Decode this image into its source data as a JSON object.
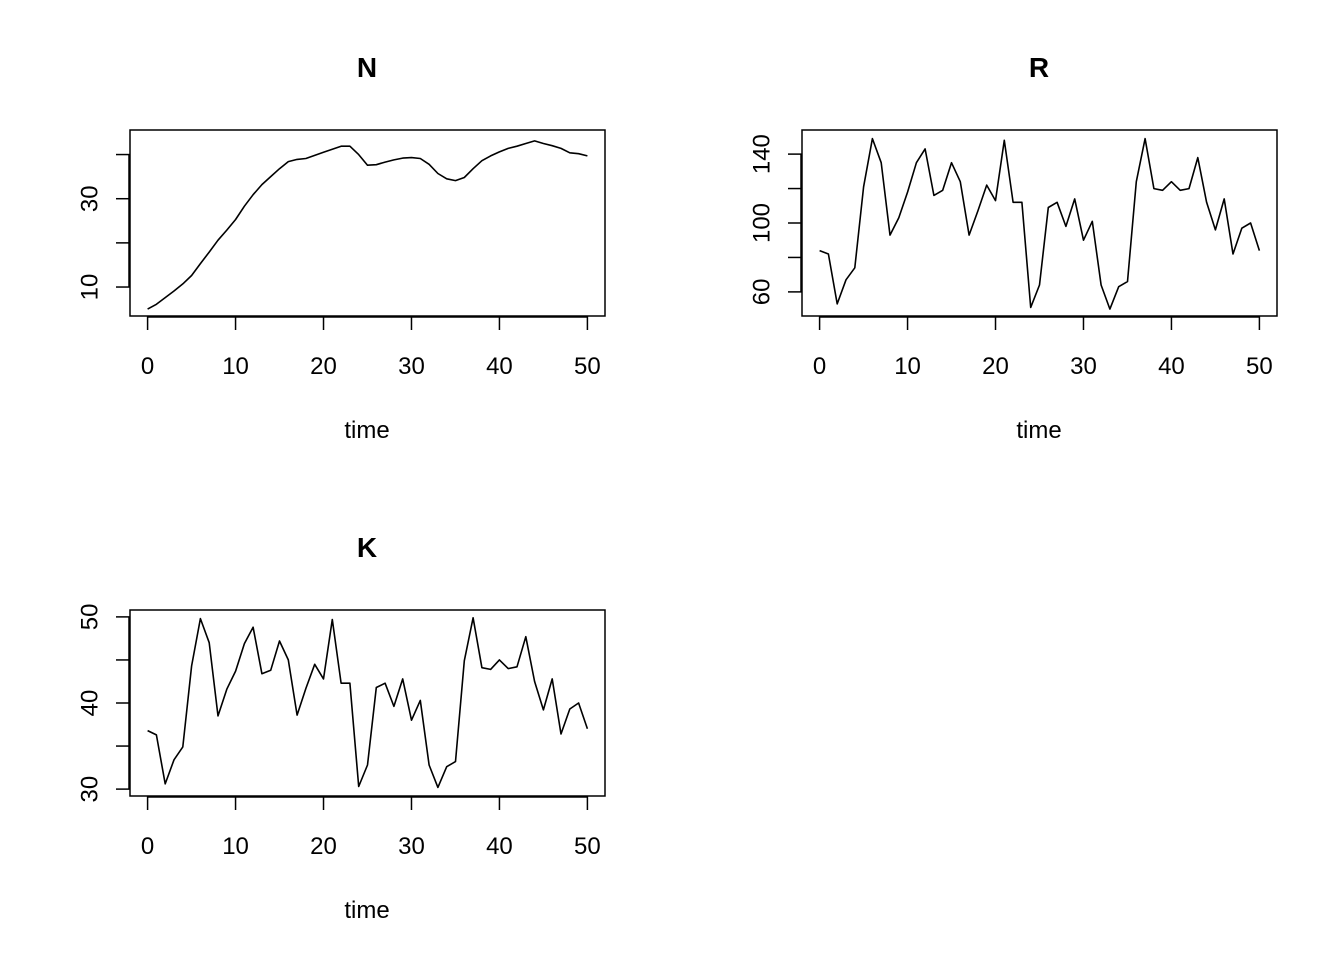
{
  "chart_data": [
    {
      "type": "line",
      "title": "N",
      "xlabel": "time",
      "ylabel": "",
      "xlim": [
        0,
        50
      ],
      "ylim": [
        5,
        44
      ],
      "xticks": [
        "0",
        "10",
        "20",
        "30",
        "40",
        "50"
      ],
      "yticks": [
        "10",
        "20",
        "30",
        "40"
      ],
      "ytick_labels_shown": [
        "10",
        "30"
      ],
      "grid": false,
      "series": [
        {
          "color": "#000000",
          "x": [
            0,
            1,
            2,
            3,
            4,
            5,
            6,
            7,
            8,
            9,
            10,
            11,
            12,
            13,
            14,
            15,
            16,
            17,
            18,
            19,
            20,
            21,
            22,
            23,
            24,
            25,
            26,
            27,
            28,
            29,
            30,
            31,
            32,
            33,
            34,
            35,
            36,
            37,
            38,
            39,
            40,
            41,
            42,
            43,
            44,
            45,
            46,
            47,
            48,
            49,
            50
          ],
          "y": [
            5.0,
            6.1,
            7.6,
            9.1,
            10.7,
            12.6,
            15.3,
            17.9,
            20.6,
            22.9,
            25.3,
            28.3,
            30.9,
            33.2,
            35.0,
            36.8,
            38.4,
            38.9,
            39.1,
            39.8,
            40.5,
            41.2,
            41.9,
            41.9,
            40.0,
            37.6,
            37.7,
            38.3,
            38.8,
            39.2,
            39.3,
            39.1,
            37.8,
            35.7,
            34.5,
            34.1,
            34.8,
            36.8,
            38.6,
            39.7,
            40.6,
            41.4,
            41.9,
            42.5,
            43.1,
            42.5,
            42.0,
            41.4,
            40.4,
            40.2,
            39.7
          ]
        }
      ]
    },
    {
      "type": "line",
      "title": "R",
      "xlabel": "time",
      "ylabel": "",
      "xlim": [
        0,
        50
      ],
      "ylim": [
        50,
        150
      ],
      "xticks": [
        "0",
        "10",
        "20",
        "30",
        "40",
        "50"
      ],
      "yticks": [
        "60",
        "80",
        "100",
        "120",
        "140"
      ],
      "ytick_labels_shown": [
        "60",
        "100",
        "140"
      ],
      "grid": false,
      "series": [
        {
          "color": "#000000",
          "x": [
            0,
            1,
            2,
            3,
            4,
            5,
            6,
            7,
            8,
            9,
            10,
            11,
            12,
            13,
            14,
            15,
            16,
            17,
            18,
            19,
            20,
            21,
            22,
            23,
            24,
            25,
            26,
            27,
            28,
            29,
            30,
            31,
            32,
            33,
            34,
            35,
            36,
            37,
            38,
            39,
            40,
            41,
            42,
            43,
            44,
            45,
            46,
            47,
            48,
            49,
            50
          ],
          "y": [
            84,
            82,
            53,
            67,
            74,
            121,
            149,
            135,
            93,
            103,
            118,
            135,
            143,
            116,
            119,
            135,
            124,
            93,
            107,
            122,
            113,
            148,
            112,
            112,
            51,
            64,
            109,
            112,
            98,
            114,
            90,
            101,
            64,
            50,
            63,
            66,
            124,
            149,
            120,
            119,
            124,
            119,
            120,
            138,
            112,
            96,
            114,
            82,
            97,
            100,
            84
          ]
        }
      ]
    },
    {
      "type": "line",
      "title": "K",
      "xlabel": "time",
      "ylabel": "",
      "xlim": [
        0,
        50
      ],
      "ylim": [
        30,
        50
      ],
      "xticks": [
        "0",
        "10",
        "20",
        "30",
        "40",
        "50"
      ],
      "yticks": [
        "30",
        "35",
        "40",
        "45",
        "50"
      ],
      "ytick_labels_shown": [
        "30",
        "40",
        "50"
      ],
      "grid": false,
      "series": [
        {
          "color": "#000000",
          "x": [
            0,
            1,
            2,
            3,
            4,
            5,
            6,
            7,
            8,
            9,
            10,
            11,
            12,
            13,
            14,
            15,
            16,
            17,
            18,
            19,
            20,
            21,
            22,
            23,
            24,
            25,
            26,
            27,
            28,
            29,
            30,
            31,
            32,
            33,
            34,
            35,
            36,
            37,
            38,
            39,
            40,
            41,
            42,
            43,
            44,
            45,
            46,
            47,
            48,
            49,
            50
          ],
          "y": [
            36.8,
            36.3,
            30.6,
            33.4,
            34.9,
            44.3,
            49.8,
            47.0,
            38.5,
            41.6,
            43.7,
            46.9,
            48.8,
            43.4,
            43.8,
            47.2,
            45.0,
            38.6,
            41.7,
            44.5,
            42.8,
            49.7,
            42.3,
            42.3,
            30.3,
            32.8,
            41.8,
            42.3,
            39.6,
            42.8,
            38.0,
            40.3,
            32.8,
            30.2,
            32.6,
            33.2,
            44.9,
            49.9,
            44.1,
            43.9,
            45.0,
            44.0,
            44.2,
            47.7,
            42.5,
            39.2,
            42.8,
            36.4,
            39.3,
            40.0,
            37.0
          ]
        }
      ]
    }
  ]
}
